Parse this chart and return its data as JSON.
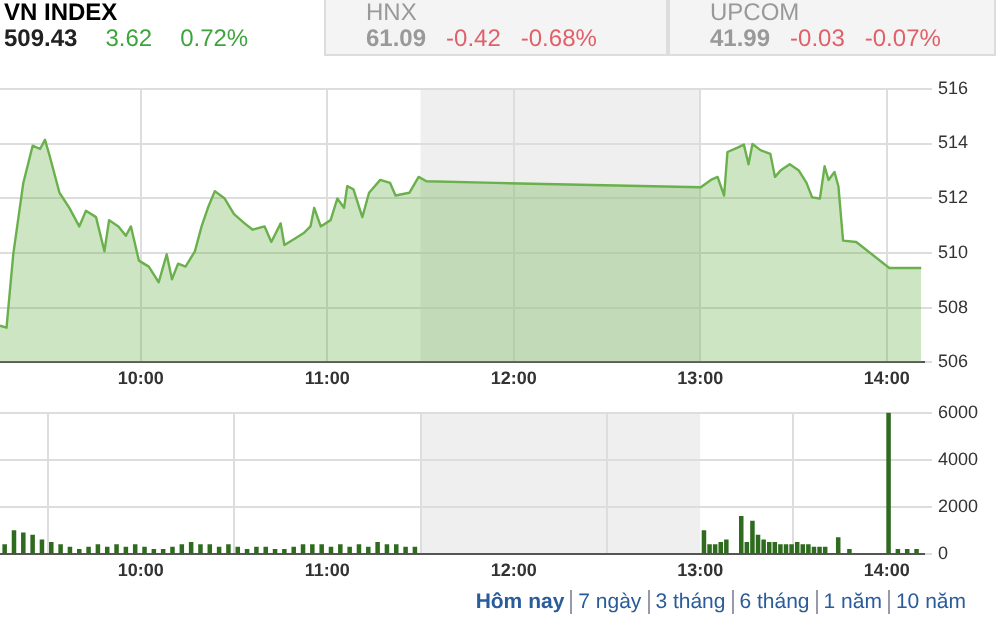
{
  "chart_data": [
    {
      "type": "other",
      "title": "VN INDEX",
      "annotations": [
        "509.43",
        "3.62",
        "0.72%",
        "HNX",
        "61.09",
        "-0.42",
        "-0.68%",
        "UPCOM",
        "41.99",
        "-0.03",
        "-0.07%"
      ]
    },
    {
      "type": "area",
      "x": [
        9.245,
        9.28,
        9.316,
        9.37,
        9.42,
        9.46,
        9.486,
        9.51,
        9.564,
        9.617,
        9.67,
        9.706,
        9.76,
        9.805,
        9.83,
        9.88,
        9.92,
        9.947,
        9.99,
        10.043,
        10.096,
        10.139,
        10.167,
        10.2,
        10.24,
        10.29,
        10.326,
        10.36,
        10.397,
        10.45,
        10.5,
        10.557,
        10.6,
        10.664,
        10.7,
        10.75,
        10.77,
        10.823,
        10.876,
        10.91,
        10.93,
        10.965,
        11.018,
        11.054,
        11.09,
        11.107,
        11.14,
        11.188,
        11.224,
        11.284,
        11.337,
        11.366,
        11.44,
        11.49,
        11.532,
        11.904,
        13.003,
        13.057,
        13.093,
        13.128,
        13.146,
        13.2,
        13.234,
        13.259,
        13.28,
        13.323,
        13.376,
        13.401,
        13.43,
        13.48,
        13.529,
        13.57,
        13.6,
        13.642,
        13.667,
        13.688,
        13.72,
        13.741,
        13.766,
        13.837,
        14.014,
        14.185
      ],
      "series": [
        {
          "color": "#6ab04c",
          "values": [
            507.34,
            507.27,
            509.95,
            512.56,
            513.92,
            513.8,
            514.14,
            513.58,
            512.2,
            511.65,
            510.97,
            511.54,
            511.31,
            510.06,
            511.2,
            510.97,
            510.63,
            510.97,
            509.72,
            509.5,
            508.93,
            509.95,
            509.04,
            509.61,
            509.5,
            510.06,
            510.97,
            511.65,
            512.26,
            511.99,
            511.42,
            511.08,
            510.85,
            510.97,
            510.4,
            511.08,
            510.29,
            510.51,
            510.74,
            510.97,
            511.65,
            510.97,
            511.2,
            511.99,
            511.65,
            512.44,
            512.33,
            511.31,
            512.2,
            512.67,
            512.56,
            512.1,
            512.2,
            512.78,
            512.62,
            512.56,
            512.4,
            512.67,
            512.78,
            512.1,
            513.69,
            513.85,
            513.96,
            513.24,
            513.98,
            513.76,
            513.62,
            512.78,
            513.01,
            513.24,
            513.01,
            512.56,
            512.03,
            511.99,
            513.17,
            512.67,
            512.96,
            512.44,
            510.45,
            510.4,
            509.45,
            509.45
          ]
        }
      ],
      "xlim": [
        9.245,
        14.2
      ],
      "xticks": [
        {
          "value": 10,
          "label": "10:00"
        },
        {
          "value": 11,
          "label": "11:00"
        },
        {
          "value": 12,
          "label": "12:00"
        },
        {
          "value": 13,
          "label": "13:00"
        },
        {
          "value": 14,
          "label": "14:00"
        }
      ],
      "ylim": [
        506,
        516
      ],
      "yticks": [
        506,
        508,
        510,
        512,
        514,
        516
      ],
      "grid": true,
      "marker": "none",
      "bands": [
        {
          "axis": "x",
          "from": 11.5,
          "to": 13,
          "color": "#efefef"
        }
      ]
    },
    {
      "type": "bar",
      "x": [
        9.27,
        9.32,
        9.37,
        9.42,
        9.47,
        9.52,
        9.57,
        9.62,
        9.67,
        9.72,
        9.77,
        9.82,
        9.87,
        9.92,
        9.97,
        10.02,
        10.07,
        10.12,
        10.17,
        10.22,
        10.27,
        10.32,
        10.37,
        10.42,
        10.47,
        10.52,
        10.57,
        10.62,
        10.67,
        10.72,
        10.77,
        10.82,
        10.87,
        10.92,
        10.97,
        11.02,
        11.07,
        11.12,
        11.17,
        11.22,
        11.27,
        11.32,
        11.37,
        11.42,
        11.47,
        13.02,
        13.05,
        13.08,
        13.11,
        13.14,
        13.22,
        13.25,
        13.28,
        13.31,
        13.34,
        13.37,
        13.4,
        13.43,
        13.46,
        13.49,
        13.52,
        13.55,
        13.58,
        13.61,
        13.64,
        13.67,
        13.74,
        13.8,
        14.01,
        14.06,
        14.11,
        14.16
      ],
      "series": [
        {
          "color": "#2e6b1f",
          "values": [
            400,
            1000,
            900,
            800,
            600,
            500,
            400,
            300,
            200,
            300,
            400,
            300,
            400,
            300,
            400,
            300,
            200,
            200,
            300,
            400,
            500,
            400,
            400,
            300,
            400,
            300,
            200,
            300,
            300,
            200,
            200,
            300,
            400,
            400,
            400,
            300,
            400,
            300,
            400,
            300,
            500,
            400,
            400,
            300,
            300,
            1000,
            400,
            400,
            500,
            600,
            1600,
            500,
            1400,
            800,
            600,
            500,
            500,
            400,
            400,
            400,
            500,
            400,
            400,
            300,
            300,
            300,
            700,
            200,
            6000,
            200,
            200,
            200
          ]
        }
      ],
      "xlim": [
        9.245,
        14.2
      ],
      "xticks": [
        {
          "value": 10,
          "label": "10:00"
        },
        {
          "value": 11,
          "label": "11:00"
        },
        {
          "value": 12,
          "label": "12:00"
        },
        {
          "value": 13,
          "label": "13:00"
        },
        {
          "value": 14,
          "label": "14:00"
        }
      ],
      "ylim": [
        0,
        6000
      ],
      "yticks": [
        0,
        2000,
        4000,
        6000
      ],
      "grid": true,
      "bands": [
        {
          "axis": "x",
          "from": 11.5,
          "to": 13,
          "color": "#efefef"
        }
      ],
      "annotations": [
        "Hôm nay",
        "7 ngày",
        "3 tháng",
        "6 tháng",
        "1 năm",
        "10 năm"
      ]
    }
  ]
}
